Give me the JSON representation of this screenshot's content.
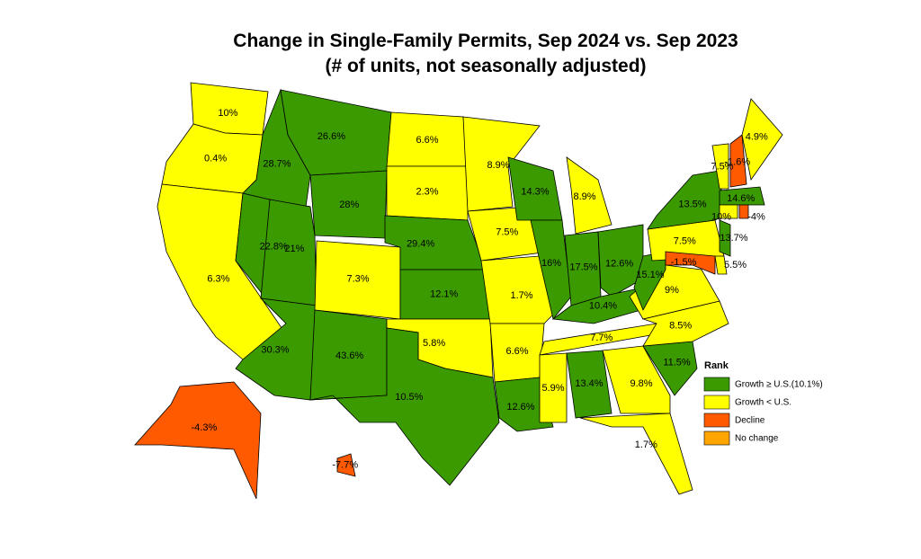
{
  "title": "Change in Single-Family Permits, Sep 2024 vs. Sep 2023",
  "subtitle": "(# of units, not seasonally adjusted)",
  "legend": {
    "title": "Rank",
    "items": [
      {
        "label": "Growth ≥ U.S.(10.1%)",
        "color": "#3a9a00"
      },
      {
        "label": "Growth < U.S.",
        "color": "#ffff00"
      },
      {
        "label": "Decline",
        "color": "#ff5a00"
      },
      {
        "label": "No change",
        "color": "#ffa500"
      }
    ]
  },
  "states": [
    {
      "label": "10%",
      "rank": 1
    },
    {
      "label": "0.4%",
      "rank": 1
    },
    {
      "label": "6.3%",
      "rank": 1
    },
    {
      "label": "22.8%",
      "rank": 0
    },
    {
      "label": "28.7%",
      "rank": 0
    },
    {
      "label": "26.6%",
      "rank": 0
    },
    {
      "label": "28%",
      "rank": 0
    },
    {
      "label": "21%",
      "rank": 0
    },
    {
      "label": "30.3%",
      "rank": 0
    },
    {
      "label": "7.3%",
      "rank": 1
    },
    {
      "label": "43.6%",
      "rank": 0
    },
    {
      "label": "6.6%",
      "rank": 1
    },
    {
      "label": "2.3%",
      "rank": 1
    },
    {
      "label": "29.4%",
      "rank": 0
    },
    {
      "label": "12.1%",
      "rank": 0
    },
    {
      "label": "5.8%",
      "rank": 1
    },
    {
      "label": "10.5%",
      "rank": 0
    },
    {
      "label": "8.9%",
      "rank": 1
    },
    {
      "label": "7.5%",
      "rank": 1
    },
    {
      "label": "1.7%",
      "rank": 1
    },
    {
      "label": "6.6%",
      "rank": 1
    },
    {
      "label": "12.6%",
      "rank": 0
    },
    {
      "label": "14.3%",
      "rank": 0
    },
    {
      "label": "16%",
      "rank": 0
    },
    {
      "label": "8.9%",
      "rank": 1
    },
    {
      "label": "17.5%",
      "rank": 0
    },
    {
      "label": "12.6%",
      "rank": 0
    },
    {
      "label": "10.4%",
      "rank": 0
    },
    {
      "label": "7.7%",
      "rank": 1
    },
    {
      "label": "5.9%",
      "rank": 1
    },
    {
      "label": "13.4%",
      "rank": 0
    },
    {
      "label": "9.8%",
      "rank": 1
    },
    {
      "label": "1.7%",
      "rank": 1
    },
    {
      "label": "11.5%",
      "rank": 0
    },
    {
      "label": "8.5%",
      "rank": 1
    },
    {
      "label": "9%",
      "rank": 1
    },
    {
      "label": "15.1%",
      "rank": 0
    },
    {
      "label": "7.5%",
      "rank": 1
    },
    {
      "label": "13.5%",
      "rank": 0
    },
    {
      "label": "7.5%",
      "rank": 1
    },
    {
      "label": "-1.6%",
      "rank": 2
    },
    {
      "label": "4.9%",
      "rank": 1
    },
    {
      "label": "14.6%",
      "rank": 0
    },
    {
      "label": "10%",
      "rank": 1
    },
    {
      "label": "-4%",
      "rank": 2
    },
    {
      "label": "13.7%",
      "rank": 0
    },
    {
      "label": "5.5%",
      "rank": 1
    },
    {
      "label": "-1.5%",
      "rank": 2
    },
    {
      "label": "-4.3%",
      "rank": 2
    },
    {
      "label": "-7.7%",
      "rank": 2
    }
  ]
}
